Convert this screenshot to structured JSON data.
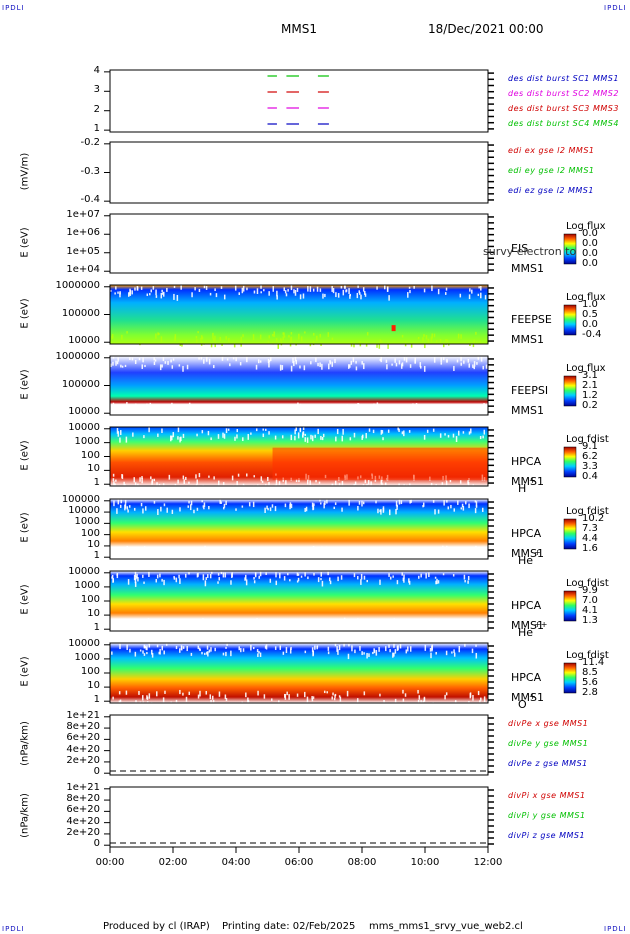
{
  "header": {
    "corner_label": "IPDLI",
    "spacecraft": "MMS1",
    "datetime": "18/Dec/2021 00:00"
  },
  "footer": {
    "produced_by": "Produced by cl (IRAP)",
    "printing_date": "Printing date: 02/Feb/2025",
    "filename": "mms_mms1_srvy_vue_web2.cl"
  },
  "colors": {
    "red": "#d00000",
    "green": "#00c000",
    "blue": "#0000c0",
    "magenta": "#e000e0"
  },
  "chart_data": {
    "type": "multi-panel",
    "x_axis": {
      "range": [
        "00:00",
        "12:00"
      ],
      "ticks": [
        "00:00",
        "02:00",
        "04:00",
        "06:00",
        "08:00",
        "10:00",
        "12:00"
      ]
    },
    "panels": [
      {
        "id": "burst",
        "ylabel": "",
        "ticks": [
          "4",
          "3",
          "2",
          "1"
        ],
        "legend": [
          {
            "text": "des dist burst SC1 MMS1",
            "color": "#0000c0"
          },
          {
            "text": "des dist burst SC2 MMS2",
            "color": "#e000e0"
          },
          {
            "text": "des dist burst SC3 MMS3",
            "color": "#d00000"
          },
          {
            "text": "des dist burst SC4 MMS4",
            "color": "#00c000"
          }
        ],
        "burst_intervals_hours": [
          [
            5.0,
            5.3
          ],
          [
            5.6,
            6.0
          ],
          [
            6.6,
            6.95
          ]
        ]
      },
      {
        "id": "edi",
        "ylabel": "(mV/m)",
        "ticks": [
          "-0.2",
          "-0.3",
          "-0.4"
        ],
        "legend": [
          {
            "text": "edi ex gse l2 MMS1",
            "color": "#d00000"
          },
          {
            "text": "edi ey gse l2 MMS1",
            "color": "#00c000"
          },
          {
            "text": "edi ez gse l2 MMS1",
            "color": "#0000c0"
          }
        ]
      },
      {
        "id": "eis",
        "ylabel": "E (eV)",
        "ticks": [
          "1e+07",
          "1e+06",
          "1e+05",
          "1e+04"
        ],
        "side": [
          "EIS",
          "MMS1"
        ],
        "overlay": "survy electron to",
        "colorbar": {
          "label": "Log flux",
          "ticks": [
            "0.0",
            "0.0",
            "0.0",
            "0.0"
          ]
        }
      },
      {
        "id": "feepse",
        "ylabel": "E (eV)",
        "ticks": [
          "1000000",
          "100000",
          "10000"
        ],
        "side": [
          "FEEPSE",
          "MMS1"
        ],
        "colorbar": {
          "label": "Log flux",
          "ticks": [
            "1.0",
            "0.5",
            "0.0",
            "-0.4"
          ]
        }
      },
      {
        "id": "feepsi",
        "ylabel": "E (eV)",
        "ticks": [
          "1000000",
          "100000",
          "10000"
        ],
        "side": [
          "FEEPSI",
          "MMS1"
        ],
        "colorbar": {
          "label": "Log flux",
          "ticks": [
            "3.1",
            "2.1",
            "1.2",
            "0.2"
          ]
        }
      },
      {
        "id": "hpca_h",
        "ylabel": "E (eV)",
        "ticks": [
          "10000",
          "1000",
          "100",
          "10",
          "1"
        ],
        "side": [
          "HPCA",
          "MMS1"
        ],
        "species": "H",
        "charge": "+",
        "colorbar": {
          "label": "Log fdist",
          "ticks": [
            "9.1",
            "6.2",
            "3.3",
            "0.4"
          ]
        }
      },
      {
        "id": "hpca_he1",
        "ylabel": "E (eV)",
        "ticks": [
          "100000",
          "10000",
          "1000",
          "100",
          "10",
          "1"
        ],
        "side": [
          "HPCA",
          "MMS1"
        ],
        "species": "He",
        "charge": "+",
        "colorbar": {
          "label": "Log fdist",
          "ticks": [
            "10.2",
            "7.3",
            "4.4",
            "1.6"
          ]
        }
      },
      {
        "id": "hpca_he2",
        "ylabel": "E (eV)",
        "ticks": [
          "10000",
          "1000",
          "100",
          "10",
          "1"
        ],
        "side": [
          "HPCA",
          "MMS1"
        ],
        "species": "He",
        "charge": "++",
        "colorbar": {
          "label": "Log fdist",
          "ticks": [
            "9.9",
            "7.0",
            "4.1",
            "1.3"
          ]
        }
      },
      {
        "id": "hpca_o",
        "ylabel": "E (eV)",
        "ticks": [
          "10000",
          "1000",
          "100",
          "10",
          "1"
        ],
        "side": [
          "HPCA",
          "MMS1"
        ],
        "species": "O",
        "charge": "+",
        "colorbar": {
          "label": "Log fdist",
          "ticks": [
            "11.4",
            "8.5",
            "5.6",
            "2.8"
          ]
        }
      },
      {
        "id": "divpe",
        "ylabel": "(nPa/km)",
        "ticks": [
          "1e+21",
          "8e+20",
          "6e+20",
          "4e+20",
          "2e+20",
          "0"
        ],
        "legend": [
          {
            "text": "divPe x gse MMS1",
            "color": "#d00000"
          },
          {
            "text": "divPe y gse MMS1",
            "color": "#00c000"
          },
          {
            "text": "divPe z gse MMS1",
            "color": "#0000c0"
          }
        ]
      },
      {
        "id": "divpi",
        "ylabel": "(nPa/km)",
        "ticks": [
          "1e+21",
          "8e+20",
          "6e+20",
          "4e+20",
          "2e+20",
          "0"
        ],
        "legend": [
          {
            "text": "divPi x gse MMS1",
            "color": "#d00000"
          },
          {
            "text": "divPi y gse MMS1",
            "color": "#00c000"
          },
          {
            "text": "divPi z gse MMS1",
            "color": "#0000c0"
          }
        ]
      }
    ]
  }
}
